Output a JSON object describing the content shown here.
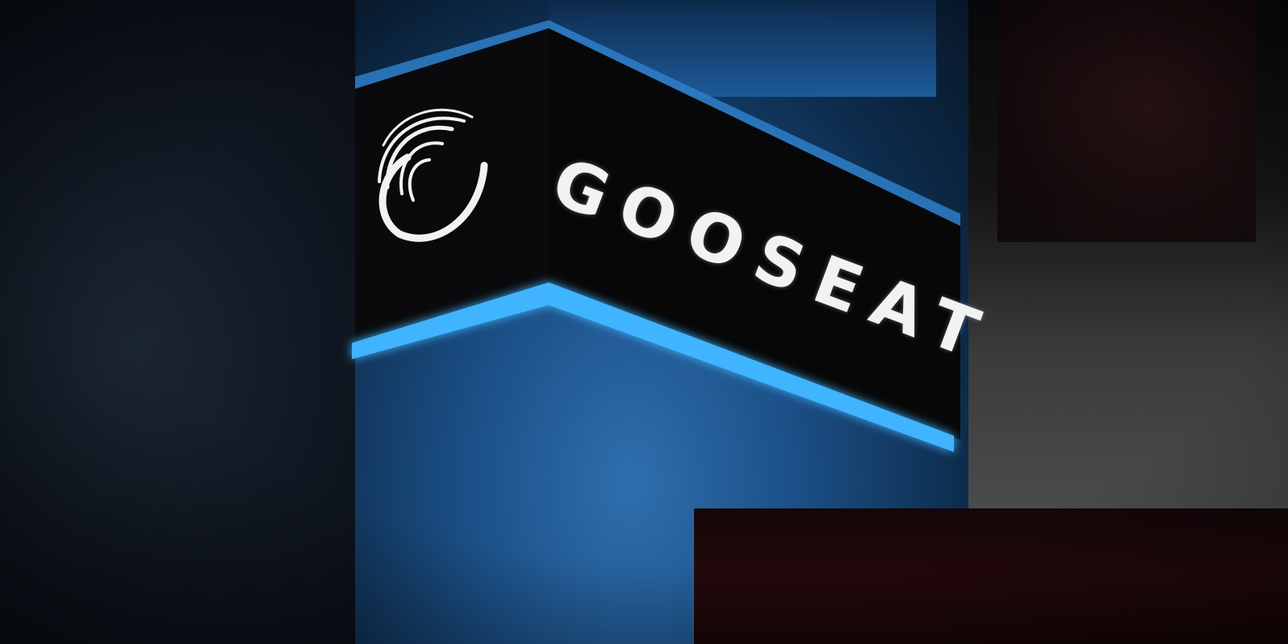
{
  "scene": {
    "subject": "illuminated-storefront-sign",
    "sign": {
      "brand_name": "GOOSEAT",
      "logo_icon": "swirl-logo-icon"
    },
    "colors": {
      "sign_face": "#070707",
      "accent_strip": "#3fb4ff",
      "text": "#f2f2f2",
      "wall_glow": "#1d5a99"
    }
  }
}
